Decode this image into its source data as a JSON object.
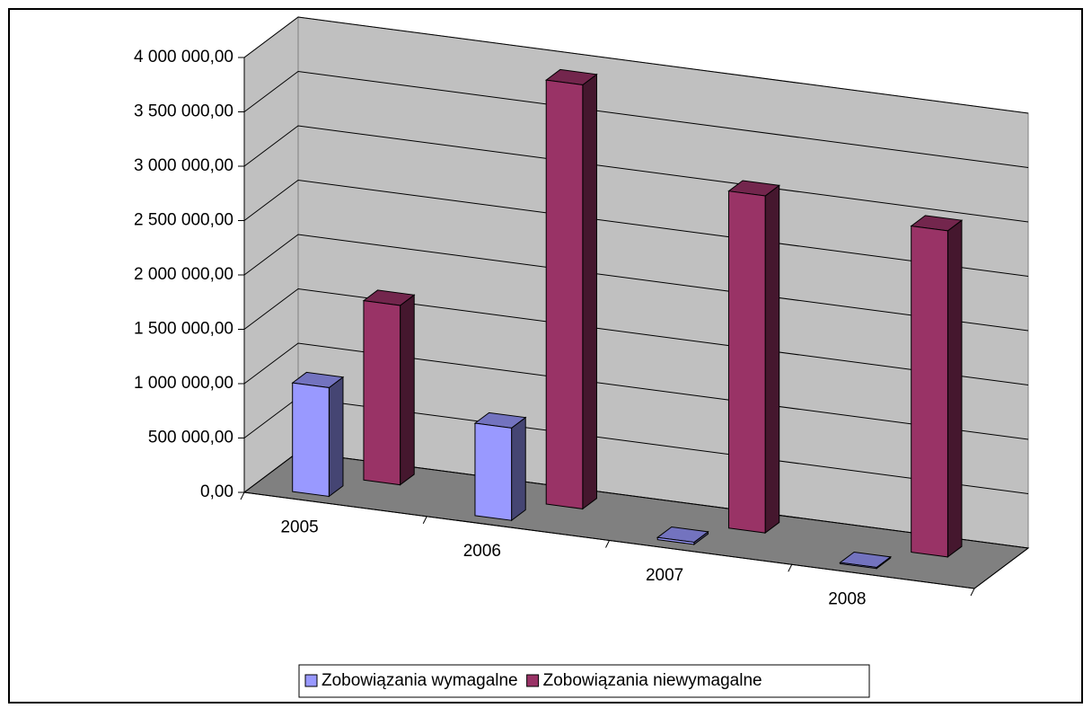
{
  "chart_data": {
    "type": "bar3d",
    "categories": [
      "2005",
      "2006",
      "2007",
      "2008"
    ],
    "series": [
      {
        "name": "Zobowiązania wymagalne",
        "color": "#9999ff",
        "values": [
          1000000,
          850000,
          20000,
          10000
        ]
      },
      {
        "name": "Zobowiązania niewymagalne",
        "color": "#993366",
        "values": [
          1650000,
          3900000,
          3100000,
          3000000
        ]
      }
    ],
    "ylim": [
      0,
      4000000
    ],
    "yticks": [
      {
        "value": 0,
        "label": "0,00"
      },
      {
        "value": 500000,
        "label": "500 000,00"
      },
      {
        "value": 1000000,
        "label": "1 000 000,00"
      },
      {
        "value": 1500000,
        "label": "1 500 000,00"
      },
      {
        "value": 2000000,
        "label": "2 000 000,00"
      },
      {
        "value": 2500000,
        "label": "2 500 000,00"
      },
      {
        "value": 3000000,
        "label": "3 000 000,00"
      },
      {
        "value": 3500000,
        "label": "3 500 000,00"
      },
      {
        "value": 4000000,
        "label": "4 000 000,00"
      }
    ],
    "grid": true,
    "legend": "bottom"
  }
}
